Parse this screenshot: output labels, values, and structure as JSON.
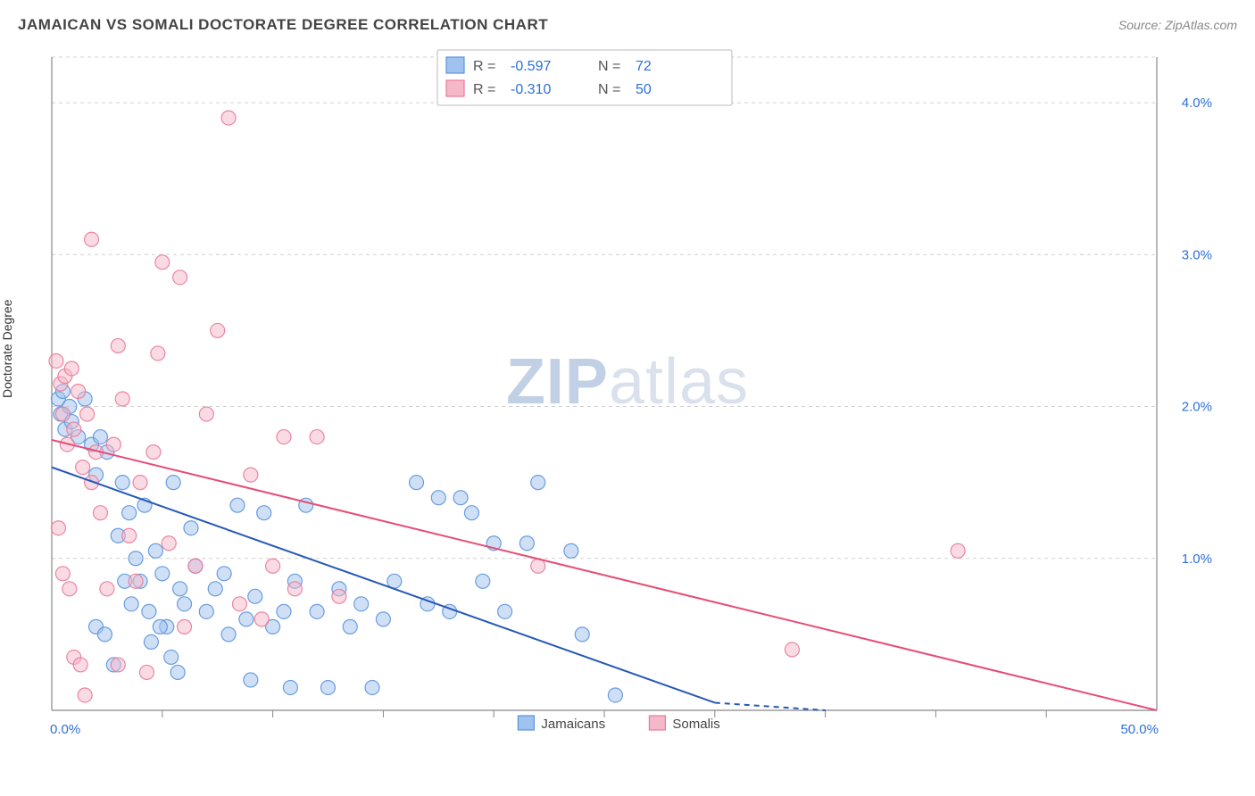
{
  "title": "JAMAICAN VS SOMALI DOCTORATE DEGREE CORRELATION CHART",
  "source": "Source: ZipAtlas.com",
  "y_axis_label": "Doctorate Degree",
  "watermark": {
    "part1": "ZIP",
    "part2": "atlas"
  },
  "chart": {
    "type": "scatter",
    "background_color": "#ffffff",
    "grid_color": "#d0d0d0",
    "axis_color": "#888888",
    "tick_label_color": "#2c6fd8",
    "xlim": [
      0,
      50
    ],
    "ylim": [
      0,
      4.3
    ],
    "y_ticks": [
      1.0,
      2.0,
      3.0,
      4.0
    ],
    "y_tick_labels": [
      "1.0%",
      "2.0%",
      "3.0%",
      "4.0%"
    ],
    "x_ticks_minor": [
      5,
      10,
      15,
      20,
      25,
      30,
      35,
      40,
      45
    ],
    "x_tick_labels": {
      "0": "0.0%",
      "50": "50.0%"
    },
    "marker_radius": 8,
    "series": [
      {
        "name": "Jamaicans",
        "color_fill": "#9fc2ee",
        "color_stroke": "#5a94de",
        "trend_color": "#2659b5",
        "R": "-0.597",
        "N": "72",
        "trend": {
          "x1": 0,
          "y1": 1.6,
          "x2": 30,
          "y2": 0.05,
          "extend_to_x": 35
        },
        "points": [
          [
            0.3,
            2.05
          ],
          [
            0.4,
            1.95
          ],
          [
            0.5,
            2.1
          ],
          [
            0.6,
            1.85
          ],
          [
            0.8,
            2.0
          ],
          [
            0.9,
            1.9
          ],
          [
            1.2,
            1.8
          ],
          [
            1.5,
            2.05
          ],
          [
            1.8,
            1.75
          ],
          [
            2.0,
            1.55
          ],
          [
            2.2,
            1.8
          ],
          [
            2.5,
            1.7
          ],
          [
            2.0,
            0.55
          ],
          [
            2.4,
            0.5
          ],
          [
            2.8,
            0.3
          ],
          [
            3.0,
            1.15
          ],
          [
            3.2,
            1.5
          ],
          [
            3.5,
            1.3
          ],
          [
            3.8,
            1.0
          ],
          [
            4.0,
            0.85
          ],
          [
            4.2,
            1.35
          ],
          [
            4.4,
            0.65
          ],
          [
            4.7,
            1.05
          ],
          [
            5.0,
            0.9
          ],
          [
            5.2,
            0.55
          ],
          [
            5.5,
            1.5
          ],
          [
            5.8,
            0.8
          ],
          [
            6.0,
            0.7
          ],
          [
            6.3,
            1.2
          ],
          [
            6.5,
            0.95
          ],
          [
            3.3,
            0.85
          ],
          [
            3.6,
            0.7
          ],
          [
            4.5,
            0.45
          ],
          [
            4.9,
            0.55
          ],
          [
            5.4,
            0.35
          ],
          [
            5.7,
            0.25
          ],
          [
            7.0,
            0.65
          ],
          [
            7.4,
            0.8
          ],
          [
            7.8,
            0.9
          ],
          [
            8.0,
            0.5
          ],
          [
            8.4,
            1.35
          ],
          [
            8.8,
            0.6
          ],
          [
            9.2,
            0.75
          ],
          [
            9.6,
            1.3
          ],
          [
            10.0,
            0.55
          ],
          [
            10.5,
            0.65
          ],
          [
            11.0,
            0.85
          ],
          [
            11.5,
            1.35
          ],
          [
            12.0,
            0.65
          ],
          [
            12.5,
            0.15
          ],
          [
            13.0,
            0.8
          ],
          [
            13.5,
            0.55
          ],
          [
            14.0,
            0.7
          ],
          [
            14.5,
            0.15
          ],
          [
            15.0,
            0.6
          ],
          [
            15.5,
            0.85
          ],
          [
            16.5,
            1.5
          ],
          [
            17.0,
            0.7
          ],
          [
            17.5,
            1.4
          ],
          [
            18.0,
            0.65
          ],
          [
            19.0,
            1.3
          ],
          [
            19.5,
            0.85
          ],
          [
            20.0,
            1.1
          ],
          [
            20.5,
            0.65
          ],
          [
            21.5,
            1.1
          ],
          [
            22.0,
            1.5
          ],
          [
            23.5,
            1.05
          ],
          [
            24.0,
            0.5
          ],
          [
            25.5,
            0.1
          ],
          [
            9.0,
            0.2
          ],
          [
            10.8,
            0.15
          ],
          [
            18.5,
            1.4
          ]
        ]
      },
      {
        "name": "Somalis",
        "color_fill": "#f5b8c8",
        "color_stroke": "#e87a9a",
        "trend_color": "#e54d76",
        "R": "-0.310",
        "N": "50",
        "trend": {
          "x1": 0,
          "y1": 1.78,
          "x2": 50,
          "y2": 0.0
        },
        "points": [
          [
            0.2,
            2.3
          ],
          [
            0.4,
            2.15
          ],
          [
            0.5,
            1.95
          ],
          [
            0.6,
            2.2
          ],
          [
            0.7,
            1.75
          ],
          [
            0.9,
            2.25
          ],
          [
            1.0,
            1.85
          ],
          [
            1.2,
            2.1
          ],
          [
            1.4,
            1.6
          ],
          [
            1.6,
            1.95
          ],
          [
            1.8,
            1.5
          ],
          [
            2.0,
            1.7
          ],
          [
            0.3,
            1.2
          ],
          [
            0.5,
            0.9
          ],
          [
            0.8,
            0.8
          ],
          [
            1.0,
            0.35
          ],
          [
            1.3,
            0.3
          ],
          [
            1.5,
            0.1
          ],
          [
            2.2,
            1.3
          ],
          [
            2.5,
            0.8
          ],
          [
            2.8,
            1.75
          ],
          [
            3.0,
            0.3
          ],
          [
            3.2,
            2.05
          ],
          [
            3.5,
            1.15
          ],
          [
            3.8,
            0.85
          ],
          [
            4.0,
            1.5
          ],
          [
            4.3,
            0.25
          ],
          [
            4.6,
            1.7
          ],
          [
            5.0,
            2.95
          ],
          [
            5.3,
            1.1
          ],
          [
            5.8,
            2.85
          ],
          [
            6.0,
            0.55
          ],
          [
            6.5,
            0.95
          ],
          [
            7.0,
            1.95
          ],
          [
            7.5,
            2.5
          ],
          [
            8.0,
            3.9
          ],
          [
            8.5,
            0.7
          ],
          [
            9.0,
            1.55
          ],
          [
            9.5,
            0.6
          ],
          [
            10.0,
            0.95
          ],
          [
            10.5,
            1.8
          ],
          [
            11.0,
            0.8
          ],
          [
            12.0,
            1.8
          ],
          [
            13.0,
            0.75
          ],
          [
            1.8,
            3.1
          ],
          [
            3.0,
            2.4
          ],
          [
            22.0,
            0.95
          ],
          [
            33.5,
            0.4
          ],
          [
            41.0,
            1.05
          ],
          [
            4.8,
            2.35
          ]
        ]
      }
    ],
    "legend_bottom": [
      {
        "label": "Jamaicans",
        "swatch_fill": "#9fc2ee",
        "swatch_stroke": "#5a94de"
      },
      {
        "label": "Somalis",
        "swatch_fill": "#f5b8c8",
        "swatch_stroke": "#e87a9a"
      }
    ]
  }
}
